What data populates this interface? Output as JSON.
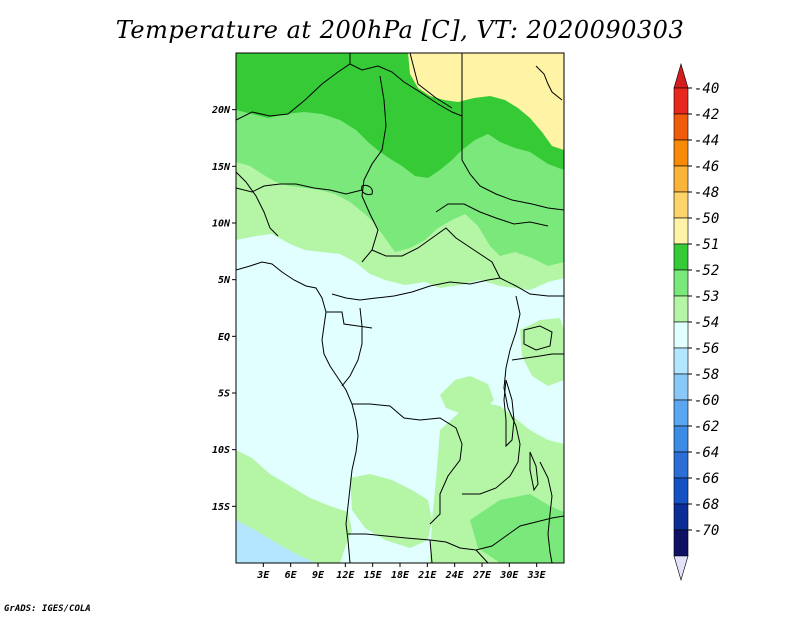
{
  "title": "Temperature at 200hPa [C], VT: 2020090303",
  "credit": "GrADS: IGES/COLA",
  "map": {
    "lon_range": [
      0,
      36
    ],
    "lat_range": [
      -20,
      25
    ],
    "lat_ticks": [
      {
        "value": 20,
        "label": "20N"
      },
      {
        "value": 15,
        "label": "15N"
      },
      {
        "value": 10,
        "label": "10N"
      },
      {
        "value": 5,
        "label": "5N"
      },
      {
        "value": 0,
        "label": "EQ"
      },
      {
        "value": -5,
        "label": "5S"
      },
      {
        "value": -10,
        "label": "10S"
      },
      {
        "value": -15,
        "label": "15S"
      }
    ],
    "lon_ticks": [
      {
        "value": 3,
        "label": "3E"
      },
      {
        "value": 6,
        "label": "6E"
      },
      {
        "value": 9,
        "label": "9E"
      },
      {
        "value": 12,
        "label": "12E"
      },
      {
        "value": 15,
        "label": "15E"
      },
      {
        "value": 18,
        "label": "18E"
      },
      {
        "value": 21,
        "label": "21E"
      },
      {
        "value": 24,
        "label": "24E"
      },
      {
        "value": 27,
        "label": "27E"
      },
      {
        "value": 30,
        "label": "30E"
      },
      {
        "value": 33,
        "label": "33E"
      }
    ]
  },
  "legend": {
    "labels": [
      "-40",
      "-42",
      "-44",
      "-46",
      "-48",
      "-50",
      "-51",
      "-52",
      "-53",
      "-54",
      "-56",
      "-58",
      "-60",
      "-62",
      "-64",
      "-66",
      "-68",
      "-70"
    ],
    "colors": [
      "#e8281e",
      "#f05b0c",
      "#f78a06",
      "#fab43a",
      "#fcd46a",
      "#fff3a6",
      "#36cb36",
      "#7be87b",
      "#b4f6a6",
      "#e1ffff",
      "#b3e6ff",
      "#8ac8f8",
      "#5aa6f0",
      "#3c8ce6",
      "#2a6ed6",
      "#1452c4",
      "#0c2c96",
      "#101064"
    ],
    "top_color": "#d41e1e",
    "bottom_color": "#e2e2f8"
  }
}
